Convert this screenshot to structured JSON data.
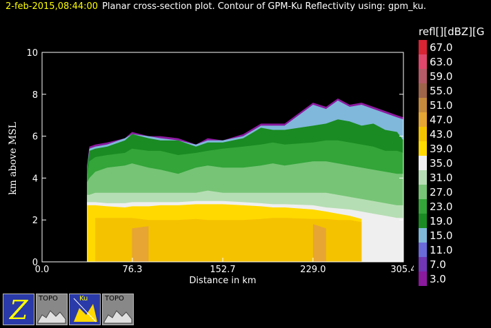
{
  "header": {
    "timestamp": "2-feb-2015,08:44:00",
    "title": "Planar cross-section plot.  Contour of GPM-Ku Reflectivity using: gpm_ku."
  },
  "legend": {
    "title": "refl[][dBZ][G",
    "items": [
      {
        "label": "67.0",
        "color": "#d92434"
      },
      {
        "label": "63.0",
        "color": "#e0476b"
      },
      {
        "label": "59.0",
        "color": "#b55a66"
      },
      {
        "label": "55.0",
        "color": "#a0644a"
      },
      {
        "label": "51.0",
        "color": "#c78a3c"
      },
      {
        "label": "47.0",
        "color": "#e7a534"
      },
      {
        "label": "43.0",
        "color": "#f5c200"
      },
      {
        "label": "39.0",
        "color": "#ffd900"
      },
      {
        "label": "35.0",
        "color": "#efefef"
      },
      {
        "label": "31.0",
        "color": "#b6deb4"
      },
      {
        "label": "27.0",
        "color": "#77c476"
      },
      {
        "label": "23.0",
        "color": "#33a539"
      },
      {
        "label": "19.0",
        "color": "#1a8b22"
      },
      {
        "label": "15.0",
        "color": "#7fb8da"
      },
      {
        "label": "11.0",
        "color": "#6b6adc"
      },
      {
        "label": "7.0",
        "color": "#7135b8"
      },
      {
        "label": "3.0",
        "color": "#8b1a9e"
      }
    ]
  },
  "chart_data": {
    "type": "heatmap",
    "title": "Planar cross-section plot.  Contour of GPM-Ku Reflectivity using: gpm_ku.",
    "xlabel": "Distance in km",
    "ylabel": "km above MSL",
    "xlim": [
      0,
      305.4
    ],
    "ylim": [
      0,
      10
    ],
    "x_ticks": [
      "0.0",
      "76.3",
      "152.7",
      "229.0",
      "305.4"
    ],
    "y_ticks": [
      "0",
      "2",
      "4",
      "6",
      "8",
      "10"
    ],
    "x": [
      38,
      40,
      45,
      55,
      70,
      76,
      90,
      100,
      115,
      130,
      140,
      152.7,
      170,
      185,
      195,
      205,
      229,
      240,
      250,
      260,
      270,
      280,
      290,
      300,
      305.4
    ],
    "layers": [
      {
        "level": "3.0",
        "color": "#8b1a9e",
        "top": [
          4.6,
          5.5,
          5.6,
          5.7,
          5.9,
          6.2,
          6.0,
          6.0,
          5.9,
          5.6,
          5.9,
          5.8,
          6.1,
          6.6,
          6.6,
          6.6,
          7.6,
          7.4,
          7.8,
          7.5,
          7.6,
          7.4,
          7.2,
          7.0,
          6.9
        ]
      },
      {
        "level": "15.0",
        "color": "#7fb8da",
        "top": [
          4.5,
          5.4,
          5.5,
          5.6,
          5.9,
          6.1,
          6.0,
          5.9,
          5.8,
          5.6,
          5.8,
          5.8,
          6.0,
          6.5,
          6.5,
          6.5,
          7.5,
          7.3,
          7.7,
          7.4,
          7.5,
          7.3,
          7.1,
          6.9,
          6.8
        ]
      },
      {
        "level": "19.0",
        "color": "#1a8b22",
        "top": [
          4.4,
          5.3,
          5.4,
          5.5,
          5.8,
          6.1,
          5.9,
          5.8,
          5.8,
          5.5,
          5.7,
          5.7,
          5.9,
          6.4,
          6.3,
          6.3,
          6.5,
          6.6,
          6.8,
          6.7,
          6.5,
          6.6,
          6.3,
          6.2,
          5.8
        ]
      },
      {
        "level": "23.0",
        "color": "#33a539",
        "top": [
          4.1,
          4.8,
          5.0,
          5.1,
          5.2,
          5.4,
          5.3,
          5.3,
          5.1,
          5.2,
          5.3,
          5.4,
          5.5,
          5.6,
          5.7,
          5.6,
          5.7,
          5.8,
          5.8,
          5.7,
          5.6,
          5.5,
          5.3,
          5.3,
          5.2
        ]
      },
      {
        "level": "27.0",
        "color": "#77c476",
        "top": [
          3.8,
          4.0,
          4.3,
          4.5,
          4.6,
          4.7,
          4.5,
          4.4,
          4.2,
          4.5,
          4.6,
          4.5,
          4.5,
          4.6,
          4.7,
          4.6,
          4.8,
          4.8,
          4.7,
          4.6,
          4.5,
          4.4,
          4.3,
          4.2,
          4.2
        ]
      },
      {
        "level": "31.0",
        "color": "#b6deb4",
        "top": [
          3.2,
          3.2,
          3.3,
          3.3,
          3.3,
          3.3,
          3.3,
          3.3,
          3.3,
          3.3,
          3.4,
          3.3,
          3.3,
          3.3,
          3.3,
          3.3,
          3.3,
          3.3,
          3.2,
          3.1,
          3.0,
          2.9,
          2.8,
          2.7,
          2.7
        ]
      },
      {
        "level": "35.0",
        "color": "#efefef",
        "top": [
          2.85,
          2.85,
          2.85,
          2.8,
          2.8,
          2.85,
          2.85,
          2.85,
          2.85,
          2.9,
          2.9,
          2.9,
          2.85,
          2.8,
          2.75,
          2.75,
          2.7,
          2.6,
          2.55,
          2.5,
          2.4,
          2.3,
          2.2,
          2.1,
          2.1
        ]
      },
      {
        "level": "39.0",
        "color": "#ffd900",
        "top": [
          2.7,
          2.7,
          2.7,
          2.65,
          2.6,
          2.65,
          2.65,
          2.7,
          2.7,
          2.75,
          2.75,
          2.75,
          2.7,
          2.65,
          2.6,
          2.6,
          2.5,
          2.4,
          2.3,
          2.2,
          2.05,
          0,
          0,
          0,
          0
        ]
      },
      {
        "level": "43.0",
        "color": "#f5c200",
        "top": [
          0,
          0,
          2.1,
          2.1,
          2.1,
          2.1,
          2.0,
          2.0,
          2.0,
          2.05,
          2.0,
          2.0,
          2.0,
          2.05,
          2.1,
          2.1,
          2.05,
          2.05,
          2.0,
          2.0,
          1.9,
          0,
          0,
          0,
          0
        ]
      },
      {
        "level": "47.0",
        "color": "#e7a534",
        "top": [
          0,
          0,
          0,
          0,
          0,
          1.6,
          1.7,
          0,
          0,
          0,
          0,
          0,
          0,
          0,
          0,
          0,
          1.8,
          1.6,
          0,
          0,
          0,
          0,
          0,
          0,
          0
        ]
      }
    ],
    "rain_area_start_km": 38
  },
  "toolbar": {
    "buttons": [
      {
        "label": "",
        "icon": "zebra-z-icon"
      },
      {
        "label": "TOPO",
        "icon": "topo-xsect-icon"
      },
      {
        "label": "Ku",
        "icon": "gpm-ku-xsect-icon"
      },
      {
        "label": "TOPO",
        "icon": "topo-xsect-icon"
      }
    ]
  }
}
